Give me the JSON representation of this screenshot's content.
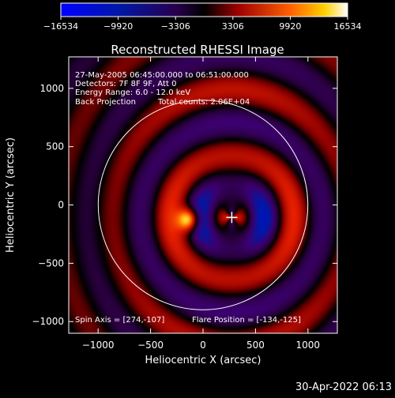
{
  "chart_data": {
    "type": "heatmap",
    "title": "Reconstructed RHESSI Image",
    "xlabel": "Heliocentric X (arcsec)",
    "ylabel": "Heliocentric Y (arcsec)",
    "xlim": [
      -1280,
      1280
    ],
    "ylim": [
      -1100,
      1270
    ],
    "xticks": [
      -1000,
      -500,
      0,
      500,
      1000
    ],
    "yticks": [
      -1000,
      -500,
      0,
      500,
      1000
    ],
    "colorbar": {
      "ticks": [
        "-16534",
        "-9920",
        "-3306",
        "3306",
        "9920",
        "16534"
      ],
      "range": [
        -16534,
        16534
      ]
    },
    "annotations": [
      "27-May-2005 06:45:00.000 to 06:51:00.000",
      "Detectors: 7F 8F 9F, Att 0",
      "Energy Range: 6.0 - 12.0 keV",
      "Back Projection",
      "Total counts: 2.06E+04"
    ],
    "spin_axis": "Spin Axis = [274,-107]",
    "flare_position": "Flare Position = [-134,-125]",
    "solar_limb_radius_arcsec": 946,
    "marker": [
      274,
      -107
    ],
    "peak": [
      -134,
      -125
    ],
    "grid": false
  },
  "footer_timestamp": "30-Apr-2022 06:13"
}
